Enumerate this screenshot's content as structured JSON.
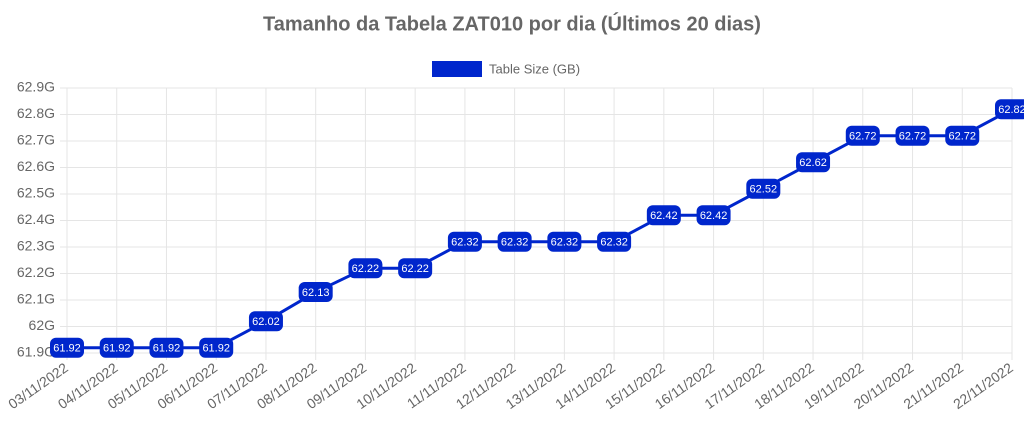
{
  "chart_data": {
    "type": "line",
    "title": "Tamanho da Tabela ZAT010 por dia (Últimos 20 dias)",
    "categories": [
      "03/11/2022",
      "04/11/2022",
      "05/11/2022",
      "06/11/2022",
      "07/11/2022",
      "08/11/2022",
      "09/11/2022",
      "10/11/2022",
      "11/11/2022",
      "12/11/2022",
      "13/11/2022",
      "14/11/2022",
      "15/11/2022",
      "16/11/2022",
      "17/11/2022",
      "18/11/2022",
      "19/11/2022",
      "20/11/2022",
      "21/11/2022",
      "22/11/2022"
    ],
    "series": [
      {
        "name": "Table Size (GB)",
        "color": "#0026cc",
        "values": [
          61.92,
          61.92,
          61.92,
          61.92,
          62.02,
          62.13,
          62.22,
          62.22,
          62.32,
          62.32,
          62.32,
          62.32,
          62.42,
          62.42,
          62.52,
          62.62,
          62.72,
          62.72,
          62.72,
          62.82
        ]
      }
    ],
    "ylim": [
      61.9,
      62.9
    ],
    "yticks": [
      {
        "value": 61.9,
        "label": "61.9G"
      },
      {
        "value": 62,
        "label": "62G"
      },
      {
        "value": 62.1,
        "label": "62.1G"
      },
      {
        "value": 62.2,
        "label": "62.2G"
      },
      {
        "value": 62.3,
        "label": "62.3G"
      },
      {
        "value": 62.4,
        "label": "62.4G"
      },
      {
        "value": 62.5,
        "label": "62.5G"
      },
      {
        "value": 62.6,
        "label": "62.6G"
      },
      {
        "value": 62.7,
        "label": "62.7G"
      },
      {
        "value": 62.8,
        "label": "62.8G"
      },
      {
        "value": 62.9,
        "label": "62.9G"
      }
    ],
    "grid": true
  }
}
